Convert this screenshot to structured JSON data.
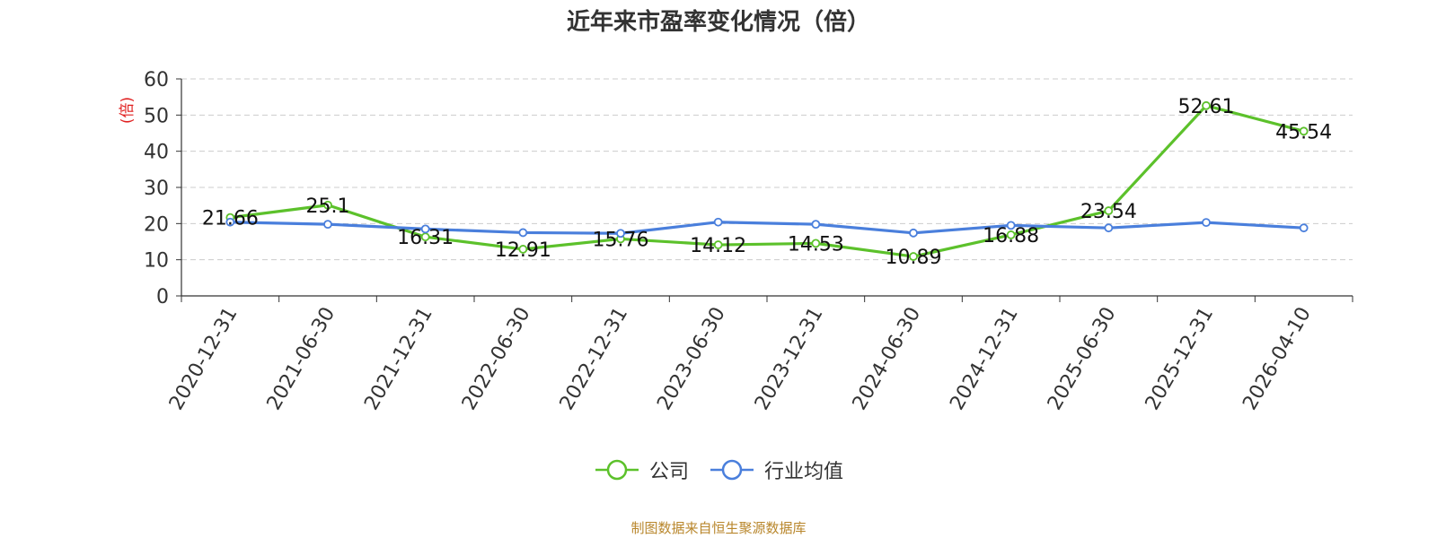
{
  "title": "近年来市盈率变化情况（倍）",
  "source_note": "制图数据来自恒生聚源数据库",
  "colors": {
    "company": "#5cc12b",
    "industry": "#4a7fdc",
    "ylabel": "#e02020",
    "source": "#b8862b"
  },
  "legend": [
    {
      "name": "公司",
      "color": "#5cc12b"
    },
    {
      "name": "行业均值",
      "color": "#4a7fdc"
    }
  ],
  "chart_data": {
    "type": "line",
    "title": "近年来市盈率变化情况（倍）",
    "ylabel": "(倍)",
    "xlabel": "",
    "ylim": [
      0,
      60
    ],
    "yticks": [
      0,
      10,
      20,
      30,
      40,
      50,
      60
    ],
    "grid": true,
    "legend_position": "bottom",
    "categories": [
      "2020-12-31",
      "2021-06-30",
      "2021-12-31",
      "2022-06-30",
      "2022-12-31",
      "2023-06-30",
      "2023-12-31",
      "2024-06-30",
      "2024-12-31",
      "2025-06-30",
      "2025-12-31",
      "2026-04-10"
    ],
    "series": [
      {
        "name": "公司",
        "values": [
          21.66,
          25.1,
          16.31,
          12.91,
          15.76,
          14.12,
          14.53,
          10.89,
          16.88,
          23.54,
          52.61,
          45.54
        ],
        "show_labels": true
      },
      {
        "name": "行业均值",
        "values": [
          20.4,
          19.8,
          18.5,
          17.5,
          17.3,
          20.4,
          19.8,
          17.4,
          19.5,
          18.8,
          20.3,
          18.8
        ],
        "show_labels": false
      }
    ]
  }
}
